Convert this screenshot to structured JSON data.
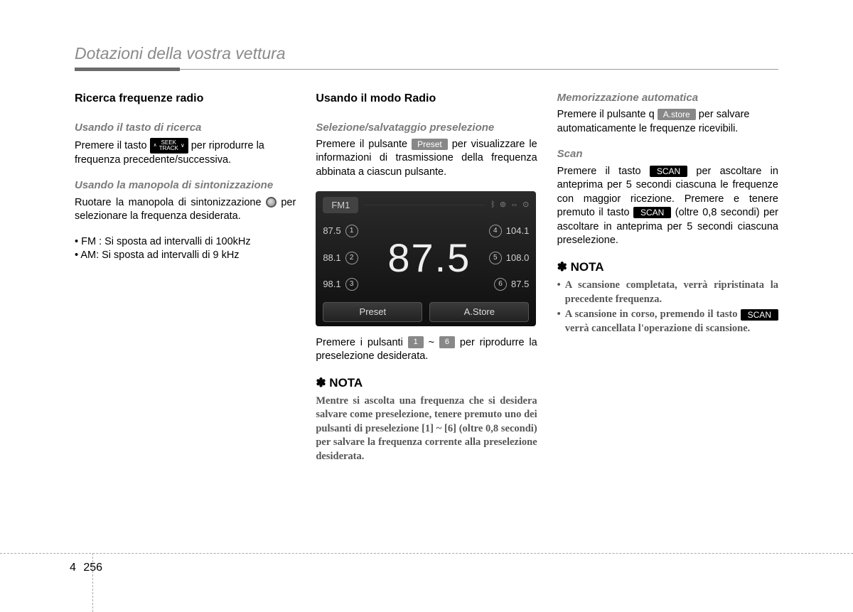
{
  "header": {
    "title": "Dotazioni della vostra vettura"
  },
  "col1": {
    "h2": "Ricerca frequenze radio",
    "sec1": {
      "h3": "Usando il tasto di ricerca",
      "pre": "Premere il tasto ",
      "seek_top": "SEEK",
      "seek_bot": "TRACK",
      "post": " per riprodurre la frequenza precedente/successiva."
    },
    "sec2": {
      "h3": "Usando la manopola di sintonizzazione",
      "pre": "Ruotare la manopola di sintonizzazione ",
      "mid": "per selezionare la frequenza desiderata.",
      "b1": "FM : Si sposta ad intervalli di 100kHz",
      "b2": "AM: Si sposta ad intervalli di 9 kHz"
    }
  },
  "col2": {
    "h2": "Usando il modo Radio",
    "sec1": {
      "h3": "Selezione/salvataggio preselezione",
      "pre": "Premere il pulsante ",
      "btn": "Preset",
      "post": " per visualizzare le informazioni di trasmissione della frequenza abbinata a ciascun pulsante."
    },
    "radio": {
      "band": "FM1",
      "main_freq": "87.5",
      "presets_left": [
        {
          "freq": "87.5",
          "n": "1"
        },
        {
          "freq": "88.1",
          "n": "2"
        },
        {
          "freq": "98.1",
          "n": "3"
        }
      ],
      "presets_right": [
        {
          "freq": "104.1",
          "n": "4"
        },
        {
          "freq": "108.0",
          "n": "5"
        },
        {
          "freq": "87.5",
          "n": "6"
        }
      ],
      "btn_left": "Preset",
      "btn_right": "A.Store"
    },
    "after_radio": {
      "pre": "Premere i pulsanti ",
      "b1": "1",
      "tilde": " ~ ",
      "b2": "6",
      "post": " per riprodurre la preselezione desiderata."
    },
    "nota_h": "NOTA",
    "nota_body": "Mentre si ascolta una frequenza che si desidera salvare come preselezione, tenere premuto uno dei pulsanti di preselezione [1] ~ [6] (oltre 0,8 secondi) per salvare la frequenza corrente alla preselezione desiderata."
  },
  "col3": {
    "sec1": {
      "h3": "Memorizzazione automatica",
      "pre": "Premere il pulsante q ",
      "btn": "A.store",
      "post": " per salvare automaticamente le frequenze ricevibili."
    },
    "sec2": {
      "h3": "Scan",
      "pre": "Premere il tasto ",
      "btn1": "SCAN",
      "mid": " per ascoltare in anteprima per 5 secondi ciascuna le frequenze con maggior ricezione. Premere e tenere premuto il tasto ",
      "btn2": "SCAN",
      "post": " (oltre 0,8 secondi) per ascoltare in anteprima per 5 secondi ciascuna preselezione."
    },
    "nota_h": "NOTA",
    "nota1": "A scansione completata, verrà ripristinata la precedente frequenza.",
    "nota2_pre": "A scansione in corso, premendo il tasto ",
    "nota2_btn": "SCAN",
    "nota2_post": " verrà cancellata l'operazione di scansione."
  },
  "footer": {
    "chapter": "4",
    "page": "256"
  }
}
